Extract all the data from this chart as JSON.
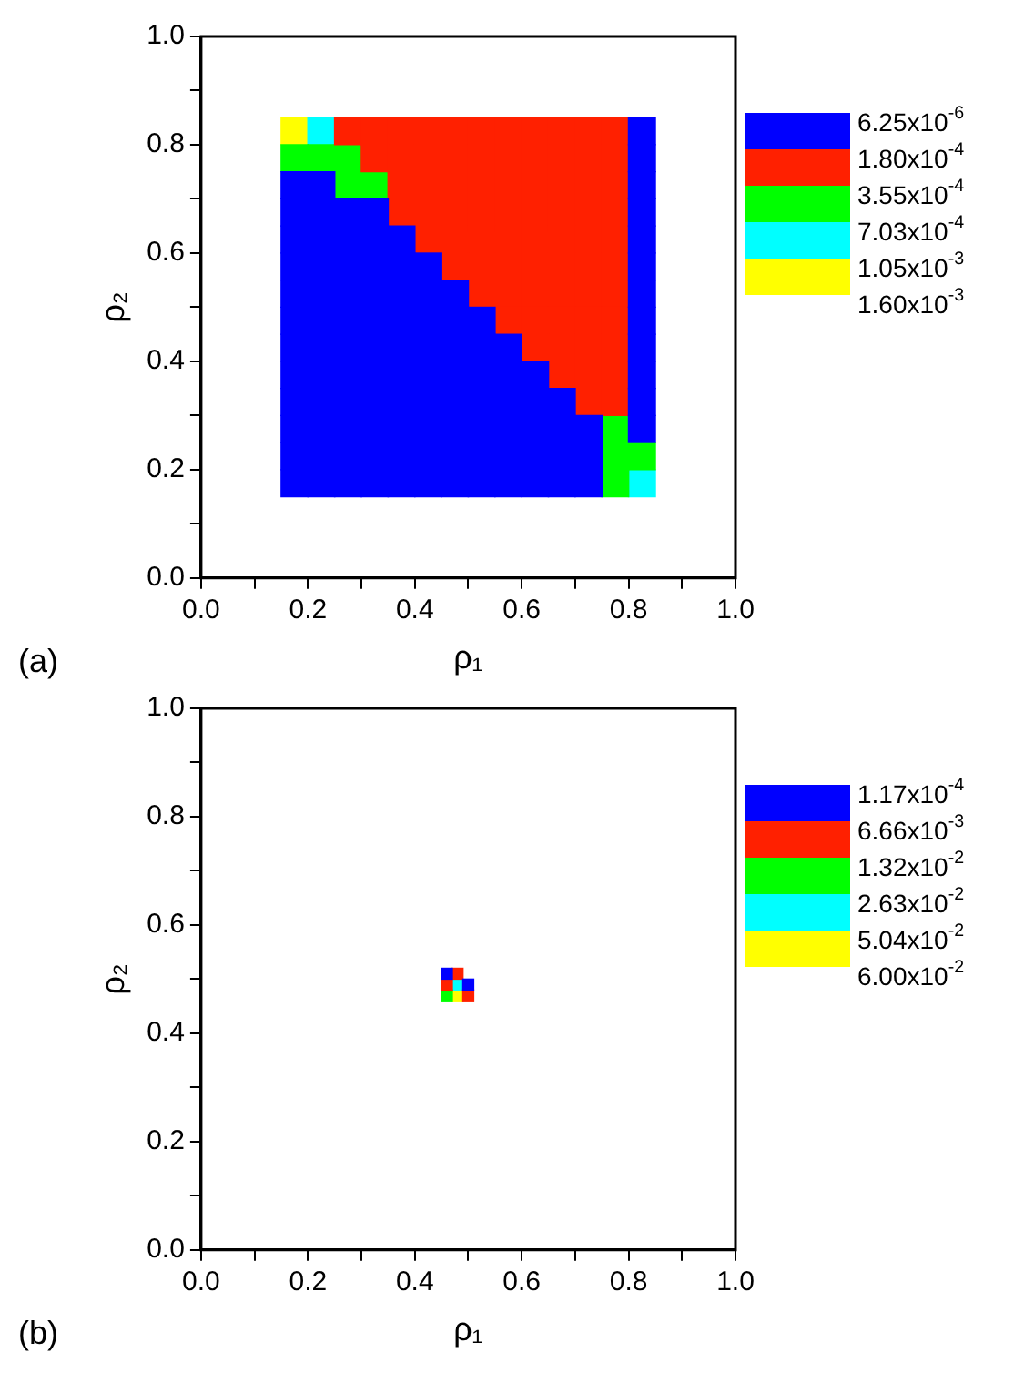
{
  "chart_data": [
    {
      "type": "scatter",
      "xlabel": "ρ₁",
      "ylabel": "ρ₂",
      "annotations": [
        "1.60x10$^{-3}$",
        "(a)"
      ],
      "xlim": [
        0,
        1
      ],
      "ylim": [
        0,
        1
      ],
      "marker": "square",
      "legend": "right",
      "xticks": [
        {
          "value": 0,
          "label": "0.0"
        },
        {
          "value": 0.1,
          "label": null
        },
        {
          "value": 0.2,
          "label": "0.2"
        },
        {
          "value": 0.3,
          "label": null
        },
        {
          "value": 0.4,
          "label": "0.4"
        },
        {
          "value": 0.5,
          "label": null
        },
        {
          "value": 0.6,
          "label": "0.6"
        },
        {
          "value": 0.7,
          "label": null
        },
        {
          "value": 0.8,
          "label": "0.8"
        },
        {
          "value": 0.9,
          "label": null
        },
        {
          "value": 1,
          "label": "1.0"
        }
      ],
      "yticks": [
        {
          "value": 0,
          "label": "0.0"
        },
        {
          "value": 0.1,
          "label": null
        },
        {
          "value": 0.2,
          "label": "0.2"
        },
        {
          "value": 0.3,
          "label": null
        },
        {
          "value": 0.4,
          "label": "0.4"
        },
        {
          "value": 0.5,
          "label": null
        },
        {
          "value": 0.6,
          "label": "0.6"
        },
        {
          "value": 0.7,
          "label": null
        },
        {
          "value": 0.8,
          "label": "0.8"
        },
        {
          "value": 0.9,
          "label": null
        },
        {
          "value": 1,
          "label": "1.0"
        }
      ],
      "series": [
        {
          "name": "6.25x10$^{-6}$",
          "color": "#0000ff",
          "x": [
            0.825,
            0.825,
            0.175,
            0.225,
            0.825,
            0.175,
            0.225,
            0.275,
            0.325,
            0.825,
            0.175,
            0.225,
            0.275,
            0.325,
            0.375,
            0.825,
            0.175,
            0.225,
            0.275,
            0.325,
            0.375,
            0.425,
            0.825,
            0.175,
            0.225,
            0.275,
            0.325,
            0.375,
            0.425,
            0.475,
            0.825,
            0.175,
            0.225,
            0.275,
            0.325,
            0.375,
            0.425,
            0.475,
            0.525,
            0.825,
            0.175,
            0.225,
            0.275,
            0.325,
            0.375,
            0.425,
            0.475,
            0.525,
            0.575,
            0.825,
            0.175,
            0.225,
            0.275,
            0.325,
            0.375,
            0.425,
            0.475,
            0.525,
            0.575,
            0.625,
            0.825,
            0.175,
            0.225,
            0.275,
            0.325,
            0.375,
            0.425,
            0.475,
            0.525,
            0.575,
            0.625,
            0.675,
            0.825,
            0.175,
            0.225,
            0.275,
            0.325,
            0.375,
            0.425,
            0.475,
            0.525,
            0.575,
            0.625,
            0.675,
            0.725,
            0.825,
            0.175,
            0.225,
            0.275,
            0.325,
            0.375,
            0.425,
            0.475,
            0.525,
            0.575,
            0.625,
            0.675,
            0.725,
            0.175,
            0.225,
            0.275,
            0.325,
            0.375,
            0.425,
            0.475,
            0.525,
            0.575,
            0.625,
            0.675,
            0.725
          ],
          "values": [
            0.825,
            0.775,
            0.725,
            0.725,
            0.725,
            0.675,
            0.675,
            0.675,
            0.675,
            0.675,
            0.625,
            0.625,
            0.625,
            0.625,
            0.625,
            0.625,
            0.575,
            0.575,
            0.575,
            0.575,
            0.575,
            0.575,
            0.575,
            0.525,
            0.525,
            0.525,
            0.525,
            0.525,
            0.525,
            0.525,
            0.525,
            0.475,
            0.475,
            0.475,
            0.475,
            0.475,
            0.475,
            0.475,
            0.475,
            0.475,
            0.425,
            0.425,
            0.425,
            0.425,
            0.425,
            0.425,
            0.425,
            0.425,
            0.425,
            0.425,
            0.375,
            0.375,
            0.375,
            0.375,
            0.375,
            0.375,
            0.375,
            0.375,
            0.375,
            0.375,
            0.375,
            0.325,
            0.325,
            0.325,
            0.325,
            0.325,
            0.325,
            0.325,
            0.325,
            0.325,
            0.325,
            0.325,
            0.325,
            0.275,
            0.275,
            0.275,
            0.275,
            0.275,
            0.275,
            0.275,
            0.275,
            0.275,
            0.275,
            0.275,
            0.275,
            0.275,
            0.225,
            0.225,
            0.225,
            0.225,
            0.225,
            0.225,
            0.225,
            0.225,
            0.225,
            0.225,
            0.225,
            0.225,
            0.175,
            0.175,
            0.175,
            0.175,
            0.175,
            0.175,
            0.175,
            0.175,
            0.175,
            0.175,
            0.175,
            0.175
          ]
        },
        {
          "name": "1.80x10$^{-4}$",
          "color": "#ff2000",
          "x": [
            0.275,
            0.325,
            0.375,
            0.425,
            0.475,
            0.525,
            0.575,
            0.625,
            0.675,
            0.725,
            0.775,
            0.325,
            0.375,
            0.425,
            0.475,
            0.525,
            0.575,
            0.625,
            0.675,
            0.725,
            0.775,
            0.375,
            0.425,
            0.475,
            0.525,
            0.575,
            0.625,
            0.675,
            0.725,
            0.775,
            0.375,
            0.425,
            0.475,
            0.525,
            0.575,
            0.625,
            0.675,
            0.725,
            0.775,
            0.425,
            0.475,
            0.525,
            0.575,
            0.625,
            0.675,
            0.725,
            0.775,
            0.475,
            0.525,
            0.575,
            0.625,
            0.675,
            0.725,
            0.775,
            0.525,
            0.575,
            0.625,
            0.675,
            0.725,
            0.775,
            0.575,
            0.625,
            0.675,
            0.725,
            0.775,
            0.625,
            0.675,
            0.725,
            0.775,
            0.675,
            0.725,
            0.775,
            0.725,
            0.775
          ],
          "values": [
            0.825,
            0.825,
            0.825,
            0.825,
            0.825,
            0.825,
            0.825,
            0.825,
            0.825,
            0.825,
            0.825,
            0.775,
            0.775,
            0.775,
            0.775,
            0.775,
            0.775,
            0.775,
            0.775,
            0.775,
            0.775,
            0.725,
            0.725,
            0.725,
            0.725,
            0.725,
            0.725,
            0.725,
            0.725,
            0.725,
            0.675,
            0.675,
            0.675,
            0.675,
            0.675,
            0.675,
            0.675,
            0.675,
            0.675,
            0.625,
            0.625,
            0.625,
            0.625,
            0.625,
            0.625,
            0.625,
            0.625,
            0.575,
            0.575,
            0.575,
            0.575,
            0.575,
            0.575,
            0.575,
            0.525,
            0.525,
            0.525,
            0.525,
            0.525,
            0.525,
            0.475,
            0.475,
            0.475,
            0.475,
            0.475,
            0.425,
            0.425,
            0.425,
            0.425,
            0.375,
            0.375,
            0.375,
            0.325,
            0.325
          ]
        },
        {
          "name": "3.55x10$^{-4}$",
          "color": "#00ff00",
          "x": [
            0.175,
            0.225,
            0.275,
            0.275,
            0.325,
            0.775,
            0.775,
            0.825,
            0.775
          ],
          "values": [
            0.775,
            0.775,
            0.775,
            0.725,
            0.725,
            0.275,
            0.225,
            0.225,
            0.175
          ]
        },
        {
          "name": "7.03x10$^{-4}$",
          "color": "#00ffff",
          "x": [
            0.225,
            0.825
          ],
          "values": [
            0.825,
            0.175
          ]
        },
        {
          "name": "1.05x10$^{-3}$",
          "color": "#ffff00",
          "x": [
            0.175
          ],
          "values": [
            0.825
          ]
        }
      ]
    },
    {
      "type": "scatter",
      "xlabel": "ρ₁",
      "ylabel": "ρ₂",
      "annotations": [
        "6.00x10$^{-2}$",
        "(b)"
      ],
      "xlim": [
        0,
        1
      ],
      "ylim": [
        0,
        1
      ],
      "marker": "square",
      "legend": "right",
      "xticks": [
        {
          "value": 0,
          "label": "0.0"
        },
        {
          "value": 0.1,
          "label": null
        },
        {
          "value": 0.2,
          "label": "0.2"
        },
        {
          "value": 0.3,
          "label": null
        },
        {
          "value": 0.4,
          "label": "0.4"
        },
        {
          "value": 0.5,
          "label": null
        },
        {
          "value": 0.6,
          "label": "0.6"
        },
        {
          "value": 0.7,
          "label": null
        },
        {
          "value": 0.8,
          "label": "0.8"
        },
        {
          "value": 0.9,
          "label": null
        },
        {
          "value": 1,
          "label": "1.0"
        }
      ],
      "yticks": [
        {
          "value": 0,
          "label": "0.0"
        },
        {
          "value": 0.1,
          "label": null
        },
        {
          "value": 0.2,
          "label": "0.2"
        },
        {
          "value": 0.3,
          "label": null
        },
        {
          "value": 0.4,
          "label": "0.4"
        },
        {
          "value": 0.5,
          "label": null
        },
        {
          "value": 0.6,
          "label": "0.6"
        },
        {
          "value": 0.7,
          "label": null
        },
        {
          "value": 0.8,
          "label": "0.8"
        },
        {
          "value": 0.9,
          "label": null
        },
        {
          "value": 1,
          "label": "1.0"
        }
      ],
      "series": [
        {
          "name": "1.17x10$^{-4}$",
          "color": "#0000ff",
          "x": [
            0.46,
            0.5
          ],
          "values": [
            0.51,
            0.49
          ]
        },
        {
          "name": "6.66x10$^{-3}$",
          "color": "#ff2000",
          "x": [
            0.48,
            0.46,
            0.5
          ],
          "values": [
            0.51,
            0.49,
            0.47
          ]
        },
        {
          "name": "1.32x10$^{-2}$",
          "color": "#00ff00",
          "x": [
            0.46
          ],
          "values": [
            0.47
          ]
        },
        {
          "name": "2.63x10$^{-2}$",
          "color": "#00ffff",
          "x": [
            0.48
          ],
          "values": [
            0.49
          ]
        },
        {
          "name": "5.04x10$^{-2}$",
          "color": "#ffff00",
          "x": [
            0.48
          ],
          "values": [
            0.47
          ]
        }
      ]
    }
  ]
}
